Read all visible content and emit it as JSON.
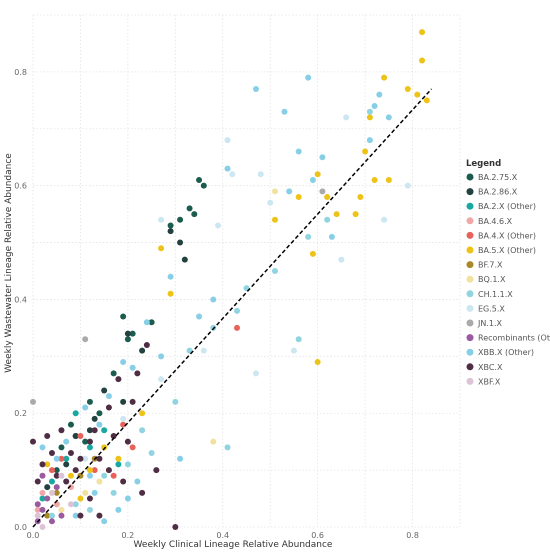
{
  "chart_data": {
    "type": "scatter",
    "title": "",
    "xlabel": "Weekly Clinical Lineage Relative Abundance",
    "ylabel": "Weekly Wastewater Lineage Relative Abundance",
    "xlim": [
      0,
      0.9
    ],
    "ylim": [
      0,
      0.9
    ],
    "xticks": [
      "0.0",
      "0.2",
      "0.4",
      "0.6",
      "0.8"
    ],
    "yticks": [
      "0.0",
      "0.2",
      "0.4",
      "0.6",
      "0.8"
    ],
    "grid": true,
    "legend_title": "Legend",
    "legend_placement": "right",
    "trendline": {
      "style": "dashed",
      "color": "#000000",
      "points": [
        [
          0.0,
          0.0
        ],
        [
          0.84,
          0.77
        ]
      ]
    },
    "series": [
      {
        "name": "BA.2.75.X",
        "color": "#1b5c4f",
        "points": [
          [
            0.33,
            0.56
          ],
          [
            0.34,
            0.55
          ],
          [
            0.35,
            0.61
          ],
          [
            0.31,
            0.54
          ],
          [
            0.29,
            0.53
          ],
          [
            0.36,
            0.6
          ],
          [
            0.2,
            0.33
          ],
          [
            0.19,
            0.37
          ],
          [
            0.21,
            0.34
          ],
          [
            0.25,
            0.36
          ],
          [
            0.17,
            0.27
          ],
          [
            0.12,
            0.22
          ],
          [
            0.08,
            0.18
          ],
          [
            0.14,
            0.2
          ],
          [
            0.09,
            0.16
          ],
          [
            0.06,
            0.14
          ],
          [
            0.05,
            0.1
          ],
          [
            0.11,
            0.15
          ]
        ]
      },
      {
        "name": "BA.2.86.X",
        "color": "#22413f",
        "points": [
          [
            0.29,
            0.52
          ],
          [
            0.32,
            0.47
          ],
          [
            0.31,
            0.5
          ],
          [
            0.2,
            0.34
          ],
          [
            0.23,
            0.31
          ],
          [
            0.15,
            0.24
          ],
          [
            0.13,
            0.19
          ],
          [
            0.19,
            0.22
          ],
          [
            0.09,
            0.16
          ],
          [
            0.12,
            0.17
          ],
          [
            0.07,
            0.11
          ],
          [
            0.03,
            0.07
          ]
        ]
      },
      {
        "name": "BA.2.X (Other)",
        "color": "#17a8a1",
        "points": [
          [
            0.07,
            0.12
          ],
          [
            0.09,
            0.2
          ],
          [
            0.02,
            0.05
          ],
          [
            0.04,
            0.08
          ],
          [
            0.12,
            0.14
          ],
          [
            0.15,
            0.17
          ],
          [
            0.05,
            0.04
          ],
          [
            0.18,
            0.11
          ]
        ]
      },
      {
        "name": "BA.4.6.X",
        "color": "#f2a7a7",
        "points": [
          [
            0.02,
            0.06
          ],
          [
            0.05,
            0.04
          ],
          [
            0.01,
            0.03
          ],
          [
            0.08,
            0.07
          ]
        ]
      },
      {
        "name": "BA.4.X (Other)",
        "color": "#e8625c",
        "points": [
          [
            0.43,
            0.35
          ],
          [
            0.21,
            0.14
          ],
          [
            0.1,
            0.16
          ],
          [
            0.06,
            0.12
          ],
          [
            0.17,
            0.09
          ],
          [
            0.04,
            0.1
          ],
          [
            0.19,
            0.18
          ],
          [
            0.13,
            0.1
          ]
        ]
      },
      {
        "name": "BA.5.X (Other)",
        "color": "#eec317",
        "points": [
          [
            0.82,
            0.87
          ],
          [
            0.82,
            0.82
          ],
          [
            0.83,
            0.75
          ],
          [
            0.81,
            0.76
          ],
          [
            0.79,
            0.77
          ],
          [
            0.74,
            0.79
          ],
          [
            0.71,
            0.72
          ],
          [
            0.7,
            0.66
          ],
          [
            0.72,
            0.61
          ],
          [
            0.75,
            0.61
          ],
          [
            0.62,
            0.58
          ],
          [
            0.6,
            0.62
          ],
          [
            0.69,
            0.58
          ],
          [
            0.56,
            0.58
          ],
          [
            0.64,
            0.55
          ],
          [
            0.68,
            0.55
          ],
          [
            0.59,
            0.48
          ],
          [
            0.6,
            0.29
          ],
          [
            0.51,
            0.54
          ],
          [
            0.27,
            0.49
          ],
          [
            0.29,
            0.41
          ],
          [
            0.23,
            0.2
          ],
          [
            0.12,
            0.1
          ],
          [
            0.08,
            0.09
          ],
          [
            0.18,
            0.12
          ],
          [
            0.1,
            0.05
          ],
          [
            0.03,
            0.11
          ],
          [
            0.15,
            0.14
          ]
        ]
      },
      {
        "name": "BF.7.X",
        "color": "#a88a2b",
        "points": [
          [
            0.05,
            0.06
          ],
          [
            0.1,
            0.09
          ],
          [
            0.03,
            0.02
          ],
          [
            0.13,
            0.12
          ]
        ]
      },
      {
        "name": "BQ.1.X",
        "color": "#f2e19e",
        "points": [
          [
            0.51,
            0.59
          ],
          [
            0.38,
            0.15
          ],
          [
            0.14,
            0.08
          ],
          [
            0.11,
            0.06
          ],
          [
            0.06,
            0.03
          ]
        ]
      },
      {
        "name": "CH.1.1.X",
        "color": "#8fd4e0",
        "points": [
          [
            0.71,
            0.73
          ],
          [
            0.58,
            0.51
          ],
          [
            0.62,
            0.54
          ],
          [
            0.51,
            0.45
          ],
          [
            0.56,
            0.33
          ],
          [
            0.45,
            0.42
          ],
          [
            0.43,
            0.38
          ],
          [
            0.38,
            0.35
          ],
          [
            0.33,
            0.31
          ],
          [
            0.3,
            0.22
          ],
          [
            0.23,
            0.17
          ],
          [
            0.2,
            0.11
          ],
          [
            0.15,
            0.09
          ],
          [
            0.09,
            0.04
          ],
          [
            0.07,
            0.08
          ],
          [
            0.25,
            0.13
          ],
          [
            0.17,
            0.06
          ],
          [
            0.04,
            0.02
          ],
          [
            0.12,
            0.03
          ],
          [
            0.41,
            0.14
          ]
        ]
      },
      {
        "name": "EG.5.X",
        "color": "#cce6f2",
        "points": [
          [
            0.66,
            0.72
          ],
          [
            0.48,
            0.62
          ],
          [
            0.5,
            0.57
          ],
          [
            0.42,
            0.62
          ],
          [
            0.39,
            0.53
          ],
          [
            0.41,
            0.68
          ],
          [
            0.79,
            0.6
          ],
          [
            0.74,
            0.54
          ],
          [
            0.65,
            0.47
          ],
          [
            0.55,
            0.31
          ],
          [
            0.47,
            0.27
          ],
          [
            0.36,
            0.31
          ],
          [
            0.27,
            0.26
          ],
          [
            0.19,
            0.19
          ],
          [
            0.11,
            0.12
          ],
          [
            0.27,
            0.54
          ]
        ]
      },
      {
        "name": "JN.1.X",
        "color": "#aaaaaa",
        "points": [
          [
            0.61,
            0.59
          ],
          [
            0.11,
            0.33
          ],
          [
            0.0,
            0.22
          ]
        ]
      },
      {
        "name": "Recombinants (Other)",
        "color": "#9a5aa0",
        "points": [
          [
            0.01,
            0.01
          ],
          [
            0.02,
            0.03
          ],
          [
            0.03,
            0.05
          ],
          [
            0.01,
            0.04
          ],
          [
            0.04,
            0.01
          ],
          [
            0.02,
            0.09
          ],
          [
            0.06,
            0.02
          ],
          [
            0.05,
            0.07
          ]
        ]
      },
      {
        "name": "XBB.X (Other)",
        "color": "#86cfe6",
        "points": [
          [
            0.47,
            0.77
          ],
          [
            0.58,
            0.79
          ],
          [
            0.73,
            0.76
          ],
          [
            0.72,
            0.74
          ],
          [
            0.75,
            0.72
          ],
          [
            0.71,
            0.68
          ],
          [
            0.61,
            0.65
          ],
          [
            0.56,
            0.66
          ],
          [
            0.41,
            0.63
          ],
          [
            0.53,
            0.73
          ],
          [
            0.54,
            0.59
          ],
          [
            0.59,
            0.61
          ],
          [
            0.63,
            0.51
          ],
          [
            0.38,
            0.4
          ],
          [
            0.35,
            0.37
          ],
          [
            0.29,
            0.44
          ],
          [
            0.24,
            0.36
          ],
          [
            0.27,
            0.3
          ],
          [
            0.19,
            0.29
          ],
          [
            0.21,
            0.28
          ],
          [
            0.16,
            0.23
          ],
          [
            0.14,
            0.18
          ],
          [
            0.11,
            0.21
          ],
          [
            0.07,
            0.15
          ],
          [
            0.05,
            0.12
          ],
          [
            0.12,
            0.09
          ],
          [
            0.02,
            0.14
          ],
          [
            0.09,
            0.02
          ],
          [
            0.15,
            0.01
          ],
          [
            0.13,
            0.06
          ],
          [
            0.18,
            0.03
          ],
          [
            0.22,
            0.08
          ],
          [
            0.31,
            0.12
          ],
          [
            0.2,
            0.05
          ]
        ]
      },
      {
        "name": "XBC.X",
        "color": "#4f2d44",
        "points": [
          [
            0.24,
            0.32
          ],
          [
            0.22,
            0.27
          ],
          [
            0.18,
            0.26
          ],
          [
            0.21,
            0.22
          ],
          [
            0.16,
            0.21
          ],
          [
            0.17,
            0.16
          ],
          [
            0.13,
            0.17
          ],
          [
            0.12,
            0.15
          ],
          [
            0.1,
            0.12
          ],
          [
            0.08,
            0.13
          ],
          [
            0.07,
            0.08
          ],
          [
            0.05,
            0.09
          ],
          [
            0.09,
            0.1
          ],
          [
            0.14,
            0.12
          ],
          [
            0.16,
            0.1
          ],
          [
            0.2,
            0.15
          ],
          [
            0.26,
            0.1
          ],
          [
            0.23,
            0.06
          ],
          [
            0.12,
            0.05
          ],
          [
            0.1,
            0.02
          ],
          [
            0.04,
            0.13
          ],
          [
            0.02,
            0.11
          ],
          [
            0.06,
            0.17
          ],
          [
            0.3,
            0.0
          ],
          [
            0.19,
            0.08
          ],
          [
            0.14,
            0.02
          ],
          [
            0.03,
            0.16
          ],
          [
            0.0,
            0.15
          ],
          [
            0.01,
            0.08
          ]
        ]
      },
      {
        "name": "XBF.X",
        "color": "#dcc3d6",
        "points": [
          [
            0.01,
            0.02
          ],
          [
            0.04,
            0.06
          ],
          [
            0.08,
            0.04
          ],
          [
            0.02,
            0.0
          ],
          [
            0.06,
            0.09
          ]
        ]
      }
    ]
  }
}
